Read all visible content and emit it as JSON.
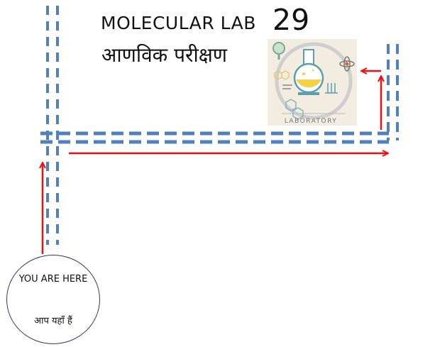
{
  "title": {
    "english": "MOLECULAR LAB",
    "number": "29",
    "hindi": "आणविक परीक्षण"
  },
  "you_are_here": {
    "english": "YOU ARE HERE",
    "hindi": "आप यहाँ हैं"
  },
  "lab_badge": {
    "label": "LABORATORY"
  },
  "colors": {
    "corridor": "#4f81bd",
    "arrow": "#ee1111",
    "circle_border": "#2c3b66"
  }
}
